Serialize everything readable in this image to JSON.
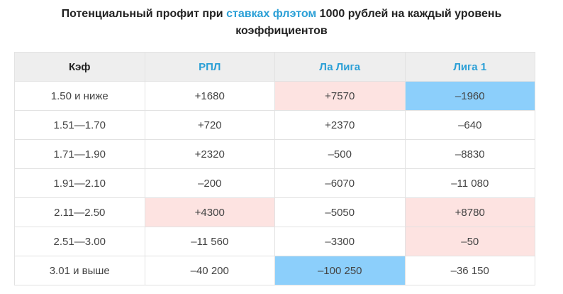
{
  "title": {
    "part1": "Потенциальный профит при ",
    "link": "ставках флэтом",
    "part2": " 1000 рублей на каждый уровень",
    "line2": "коэффициентов"
  },
  "table": {
    "headers": [
      "Кэф",
      "РПЛ",
      "Ла Лига",
      "Лига 1"
    ],
    "rows": [
      [
        "1.50 и ниже",
        "+1680",
        "+7570",
        "–1960"
      ],
      [
        "1.51—1.70",
        "+720",
        "+2370",
        "–640"
      ],
      [
        "1.71—1.90",
        "+2320",
        "–500",
        "–8830"
      ],
      [
        "1.91—2.10",
        "–200",
        "–6070",
        "–11 080"
      ],
      [
        "2.11—2.50",
        "+4300",
        "–5050",
        "+8780"
      ],
      [
        "2.51—3.00",
        "–11 560",
        "–3300",
        "–50"
      ],
      [
        "3.01 и выше",
        "–40 200",
        "–100 250",
        "–36 150"
      ]
    ]
  },
  "colors": {
    "accent": "#2a9fd6",
    "highlight_max": "#fde3e1",
    "highlight_min": "#8ccffb",
    "header_bg": "#eeeeee"
  }
}
